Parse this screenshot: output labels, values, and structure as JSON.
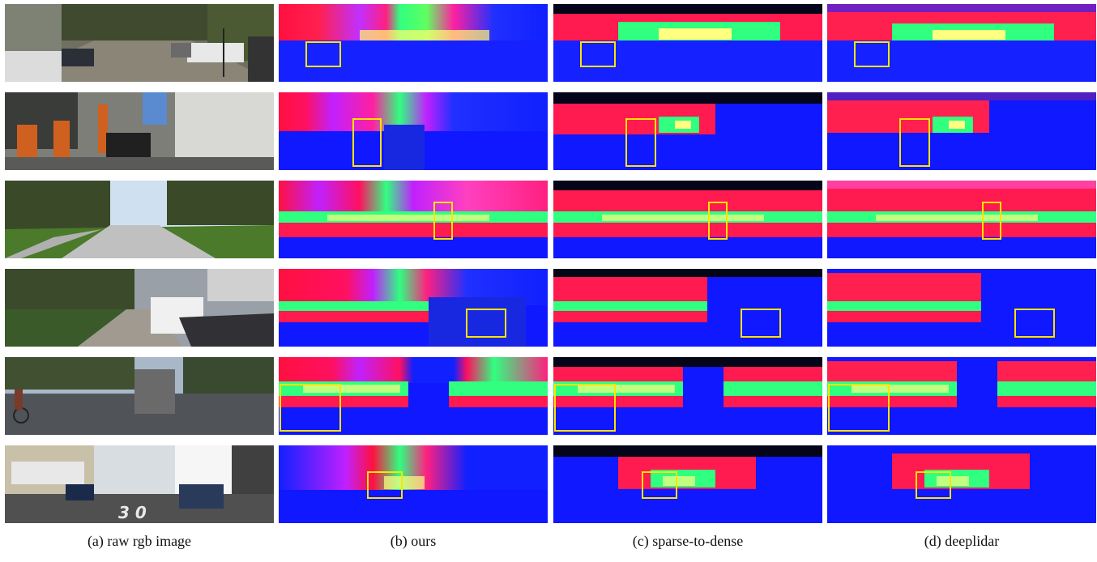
{
  "captions": {
    "a": "(a) raw rgb image",
    "b": "(b) ours",
    "c": "(c) sparse-to-dense",
    "d": "(d) deeplidar"
  },
  "columns": [
    "raw rgb image",
    "ours",
    "sparse-to-dense",
    "deeplidar"
  ],
  "rows": 6,
  "colors": {
    "depth_far": "#0a14ff",
    "depth_mid": "#ff1a40",
    "depth_near": "#20ff60",
    "depth_hot": "#ffff80",
    "highlight_box": "#ffe400",
    "background": "#ffffff"
  }
}
